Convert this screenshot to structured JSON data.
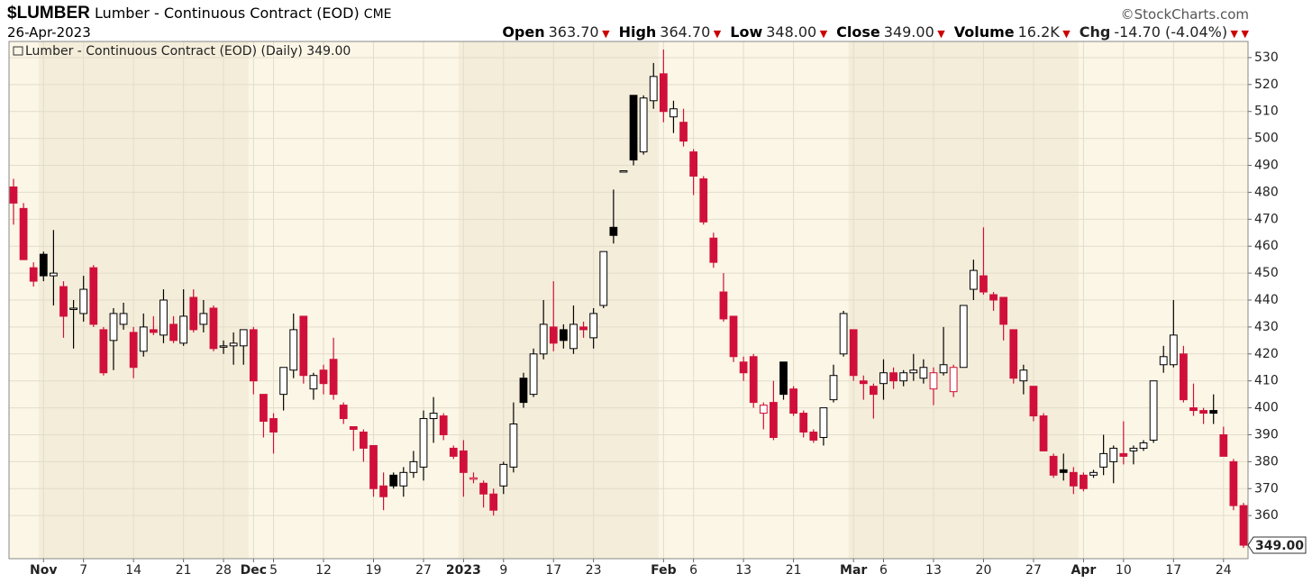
{
  "header": {
    "symbol": "$LUMBER",
    "name": "Lumber - Continuous Contract (EOD)",
    "exchange": "CME",
    "date": "26-Apr-2023",
    "credit": "©StockCharts.com",
    "stats": [
      {
        "label": "Open",
        "value": "363.70"
      },
      {
        "label": "High",
        "value": "364.70"
      },
      {
        "label": "Low",
        "value": "348.00"
      },
      {
        "label": "Close",
        "value": "349.00"
      },
      {
        "label": "Volume",
        "value": "16.2K"
      },
      {
        "label": "Chg",
        "value": "-14.70 (-4.04%)"
      }
    ]
  },
  "chart_data": {
    "type": "candlestick",
    "legend": "Lumber - Continuous Contract (EOD) (Daily) 349.00",
    "last_label": "349.00",
    "up_color": "#000000",
    "down_color": "#d0103a",
    "categories": [
      null,
      null,
      null,
      "Nov",
      null,
      null,
      null,
      "7",
      null,
      null,
      null,
      null,
      "14",
      null,
      null,
      null,
      null,
      "21",
      null,
      null,
      null,
      "28",
      null,
      null,
      "Dec",
      null,
      "5",
      null,
      null,
      null,
      null,
      "12",
      null,
      null,
      null,
      null,
      "19",
      null,
      null,
      null,
      null,
      "27",
      null,
      null,
      null,
      "2023",
      null,
      null,
      null,
      "9",
      null,
      null,
      null,
      null,
      "17",
      null,
      null,
      null,
      "23",
      null,
      null,
      null,
      null,
      null,
      null,
      "Feb",
      null,
      null,
      "6",
      null,
      null,
      null,
      null,
      "13",
      null,
      null,
      null,
      null,
      "21",
      null,
      null,
      null,
      null,
      null,
      "Mar",
      null,
      null,
      "6",
      null,
      null,
      null,
      null,
      "13",
      null,
      null,
      null,
      null,
      "20",
      null,
      null,
      null,
      null,
      "27",
      null,
      null,
      null,
      null,
      "Apr",
      null,
      null,
      null,
      "10",
      null,
      null,
      null,
      null,
      "17",
      null,
      null,
      null,
      null,
      "24",
      null,
      null
    ],
    "open": [
      482,
      474,
      452,
      457,
      449,
      445,
      437,
      435,
      452,
      429,
      425,
      431,
      428,
      421,
      429,
      427,
      431,
      424,
      441,
      431,
      437,
      423,
      423,
      423,
      429,
      405,
      396,
      405,
      414,
      434,
      407,
      414,
      418,
      401,
      393,
      391,
      386,
      371,
      375,
      371,
      376,
      378,
      396,
      397,
      385,
      384,
      374,
      372,
      368,
      371,
      378,
      411,
      405,
      420,
      430,
      429,
      422,
      430,
      426,
      438,
      467,
      488,
      516,
      495,
      514,
      524,
      508,
      506,
      495,
      485,
      463,
      443,
      434,
      417,
      419,
      398,
      402,
      417,
      407,
      398,
      391,
      389,
      403,
      420,
      429,
      410,
      408,
      409,
      413,
      410,
      413,
      411,
      407,
      413,
      406,
      415,
      444,
      449,
      442,
      441,
      429,
      410,
      408,
      397,
      382,
      377,
      376,
      375,
      375,
      378,
      380,
      383,
      384,
      385,
      388,
      416,
      416,
      420,
      400,
      399,
      399,
      390,
      380,
      363.7
    ],
    "high": [
      485,
      476,
      454,
      458,
      466,
      447,
      440,
      449,
      453,
      430,
      437,
      439,
      430,
      435,
      434,
      444,
      434,
      444,
      444,
      440,
      438,
      425,
      428,
      429,
      430,
      405,
      398,
      415,
      435,
      434,
      413,
      416,
      426,
      402,
      393,
      392,
      386,
      376,
      376,
      378,
      384,
      399,
      404,
      398,
      386,
      388,
      376,
      373,
      370,
      380,
      402,
      413,
      422,
      440,
      447,
      431,
      438,
      432,
      437,
      458,
      481,
      488,
      516,
      516,
      528,
      533,
      514,
      511,
      496,
      486,
      465,
      450,
      434,
      419,
      420,
      402,
      410,
      417,
      408,
      399,
      392,
      400,
      416,
      436,
      429,
      412,
      409,
      418,
      415,
      414,
      420,
      418,
      415,
      430,
      416,
      438,
      455,
      467,
      443,
      441,
      429,
      416,
      408,
      398,
      383,
      383,
      378,
      376,
      377,
      390,
      386,
      395,
      386,
      388,
      410,
      423,
      440,
      423,
      409,
      400,
      405,
      393,
      381,
      364.7
    ],
    "low": [
      468,
      455,
      445,
      447,
      438,
      426,
      422,
      432,
      430,
      412,
      414,
      429,
      411,
      419,
      427,
      424,
      424,
      423,
      428,
      428,
      421,
      420,
      416,
      416,
      405,
      389,
      383,
      399,
      411,
      409,
      403,
      405,
      403,
      394,
      384,
      380,
      367,
      362,
      370,
      367,
      374,
      373,
      387,
      388,
      381,
      367,
      372,
      363,
      360,
      368,
      376,
      400,
      404,
      418,
      421,
      422,
      420,
      426,
      422,
      437,
      461,
      488,
      490,
      494,
      511,
      506,
      502,
      497,
      479,
      468,
      452,
      432,
      417,
      410,
      400,
      392,
      388,
      403,
      397,
      389,
      387,
      386,
      402,
      419,
      410,
      403,
      396,
      403,
      407,
      408,
      410,
      409,
      401,
      412,
      404,
      415,
      440,
      442,
      436,
      425,
      409,
      405,
      395,
      384,
      374,
      373,
      368,
      369,
      374,
      375,
      372,
      379,
      379,
      384,
      387,
      413,
      415,
      402,
      397,
      394,
      394,
      382,
      362,
      348
    ],
    "close": [
      476,
      455,
      447,
      449,
      450,
      434,
      437,
      444,
      431,
      413,
      435,
      435,
      415,
      430,
      428,
      440,
      425,
      434,
      429,
      435,
      422,
      423,
      424,
      429,
      410,
      395,
      391,
      415,
      429,
      412,
      412,
      409,
      405,
      396,
      392,
      385,
      370,
      367,
      371,
      376,
      380,
      396,
      398,
      390,
      382,
      376,
      374,
      368,
      362,
      379,
      394,
      402,
      420,
      431,
      424,
      425,
      431,
      429,
      435,
      458,
      464,
      488,
      492,
      515,
      523,
      510,
      511,
      499,
      486,
      469,
      454,
      433,
      419,
      413,
      402,
      401,
      389,
      405,
      398,
      391,
      388,
      400,
      412,
      435,
      412,
      409,
      405,
      413,
      410,
      413,
      414,
      415,
      413,
      416,
      415,
      438,
      451,
      443,
      440,
      431,
      411,
      414,
      397,
      384,
      375,
      376,
      371,
      370,
      376,
      383,
      385,
      382,
      385,
      387,
      410,
      419,
      427,
      403,
      399,
      398,
      398,
      382,
      363.7,
      349
    ],
    "ylim": [
      344,
      536
    ],
    "yticks": [
      360,
      370,
      380,
      390,
      400,
      410,
      420,
      430,
      440,
      450,
      460,
      470,
      480,
      490,
      500,
      510,
      520,
      530
    ],
    "grid": true
  }
}
